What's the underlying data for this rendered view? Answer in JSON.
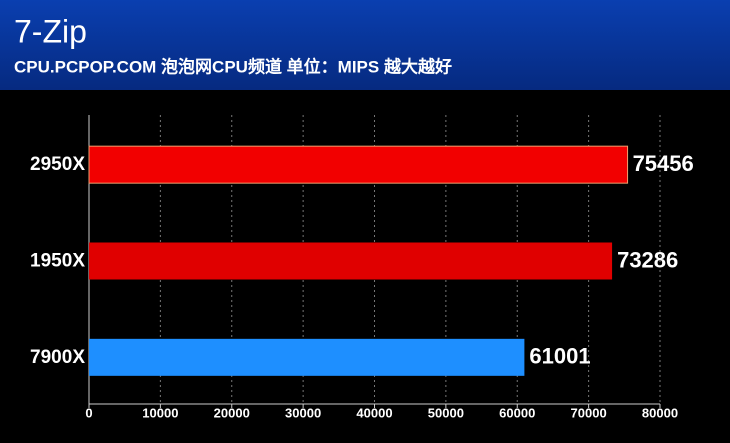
{
  "chart_data": {
    "type": "barh",
    "title": "7-Zip",
    "subtitle": "CPU.PCPOP.COM 泡泡网CPU频道 单位：MIPS 越大越好",
    "categories": [
      "2950X",
      "1950X",
      "7900X"
    ],
    "values": [
      75456,
      73286,
      61001
    ],
    "colors": [
      "#f20000",
      "#e00000",
      "#1e8fff"
    ],
    "xlim": [
      0,
      80000
    ],
    "xticks": [
      0,
      10000,
      20000,
      30000,
      40000,
      50000,
      60000,
      70000,
      80000
    ],
    "grid": true
  }
}
